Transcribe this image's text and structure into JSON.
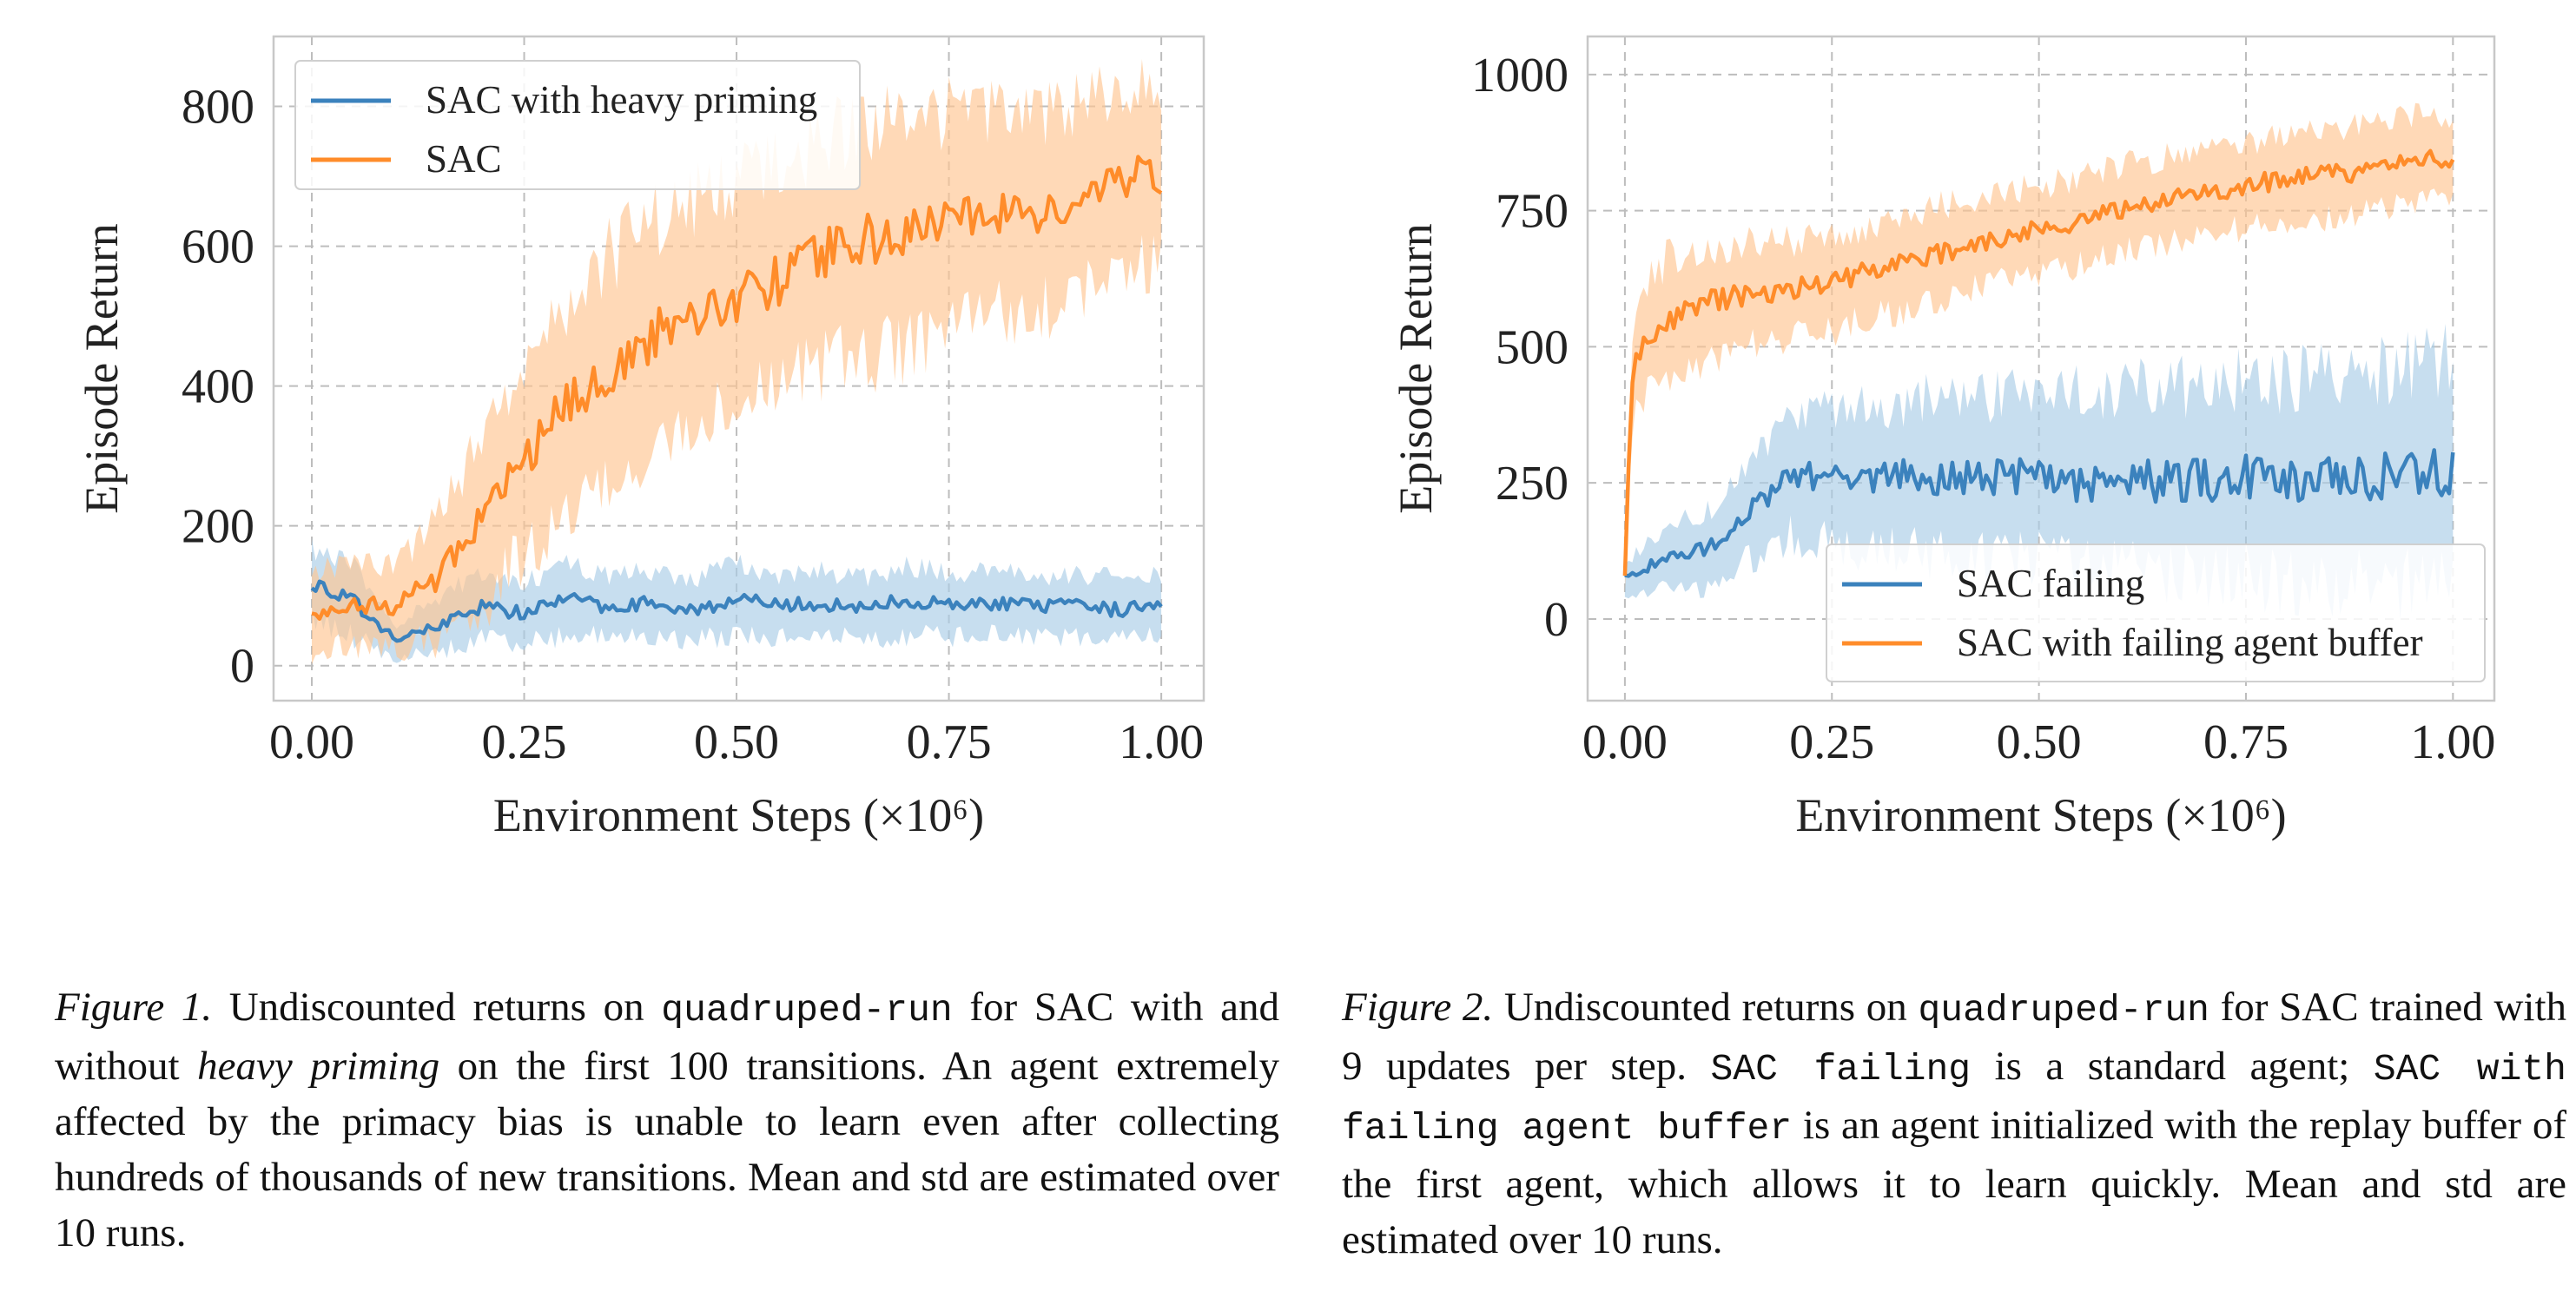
{
  "colors": {
    "sac_blue": "#3b82bd",
    "sac_orange": "#ff8c2a",
    "band_blue": "#a9cde6",
    "band_orange": "#ffc591",
    "grid": "#bdbdbd",
    "frame": "#c8c8c8"
  },
  "chart_data": [
    {
      "type": "line",
      "title": "",
      "xlabel": "Environment Steps (×10⁶)",
      "ylabel": "Episode Return",
      "xlim": [
        -0.045,
        1.05
      ],
      "ylim": [
        -50,
        900
      ],
      "xticks": [
        "0.00",
        "0.25",
        "0.50",
        "0.75",
        "1.00"
      ],
      "yticks": [
        "0",
        "200",
        "400",
        "600",
        "800"
      ],
      "grid": true,
      "legend_position": "top-left",
      "x": [
        0.0,
        0.05,
        0.1,
        0.15,
        0.2,
        0.25,
        0.3,
        0.35,
        0.4,
        0.45,
        0.5,
        0.55,
        0.6,
        0.65,
        0.7,
        0.75,
        0.8,
        0.85,
        0.9,
        0.95,
        1.0
      ],
      "series": [
        {
          "name": "SAC with heavy priming",
          "color": "#3b82bd",
          "values": [
            120,
            90,
            35,
            60,
            85,
            75,
            95,
            85,
            90,
            80,
            95,
            85,
            90,
            80,
            95,
            85,
            90,
            85,
            85,
            80,
            90
          ],
          "std": [
            50,
            50,
            25,
            40,
            45,
            45,
            50,
            45,
            45,
            45,
            50,
            45,
            45,
            45,
            50,
            45,
            45,
            45,
            45,
            45,
            45
          ]
        },
        {
          "name": "SAC",
          "color": "#ff8c2a",
          "values": [
            75,
            90,
            85,
            130,
            205,
            300,
            370,
            420,
            470,
            505,
            530,
            550,
            590,
            610,
            615,
            640,
            650,
            640,
            670,
            695,
            705
          ],
          "std": [
            55,
            60,
            60,
            90,
            120,
            140,
            155,
            165,
            165,
            160,
            165,
            160,
            160,
            165,
            160,
            150,
            140,
            140,
            135,
            130,
            130
          ]
        }
      ]
    },
    {
      "type": "line",
      "title": "",
      "xlabel": "Environment Steps (×10⁶)",
      "ylabel": "Episode Return",
      "xlim": [
        -0.045,
        1.05
      ],
      "ylim": [
        -150,
        1070
      ],
      "xticks": [
        "0.00",
        "0.25",
        "0.50",
        "0.75",
        "1.00"
      ],
      "yticks": [
        "0",
        "250",
        "500",
        "750",
        "1000"
      ],
      "grid": true,
      "legend_position": "bottom-right",
      "x": [
        0.0,
        0.005,
        0.01,
        0.02,
        0.05,
        0.1,
        0.15,
        0.2,
        0.25,
        0.3,
        0.35,
        0.4,
        0.45,
        0.5,
        0.55,
        0.6,
        0.65,
        0.7,
        0.75,
        0.8,
        0.85,
        0.9,
        0.95,
        1.0
      ],
      "series": [
        {
          "name": "SAC failing",
          "color": "#3b82bd",
          "values": [
            80,
            75,
            80,
            90,
            110,
            130,
            200,
            265,
            260,
            255,
            265,
            255,
            260,
            265,
            250,
            260,
            250,
            255,
            260,
            250,
            255,
            260,
            265,
            270
          ],
          "std": [
            30,
            30,
            35,
            40,
            55,
            70,
            90,
            110,
            120,
            130,
            140,
            145,
            150,
            155,
            160,
            165,
            170,
            175,
            180,
            185,
            190,
            195,
            200,
            205
          ]
        },
        {
          "name": "SAC with failing agent buffer",
          "color": "#ff8c2a",
          "values": [
            80,
            300,
            450,
            500,
            550,
            580,
            600,
            605,
            620,
            640,
            660,
            680,
            700,
            715,
            730,
            750,
            770,
            785,
            795,
            810,
            815,
            825,
            840,
            845
          ],
          "std": [
            40,
            60,
            80,
            100,
            110,
            100,
            95,
            90,
            90,
            85,
            85,
            85,
            80,
            80,
            80,
            80,
            80,
            80,
            80,
            80,
            80,
            80,
            80,
            80
          ]
        }
      ]
    }
  ],
  "captions": [
    {
      "label": "Figure 1.",
      "t1": " Undiscounted returns on ",
      "code1": "quadruped-run",
      "t2": " for SAC with and without ",
      "em": "heavy priming",
      "t3": " on the first 100 transitions. An agent extremely affected by the primacy bias is unable to learn even after collecting hundreds of thousands of new transitions. Mean and std are estimated over 10 runs."
    },
    {
      "label": "Figure 2.",
      "t1": " Undiscounted returns on ",
      "code1": "quadruped-run",
      "t2": " for SAC trained with 9 updates per step. ",
      "code2": "SAC failing",
      "t3": " is a standard agent; ",
      "code3": "SAC with failing agent buffer",
      "t4": " is an agent initialized with the replay buffer of the first agent, which allows it to learn quickly. Mean and std are estimated over 10 runs."
    }
  ]
}
